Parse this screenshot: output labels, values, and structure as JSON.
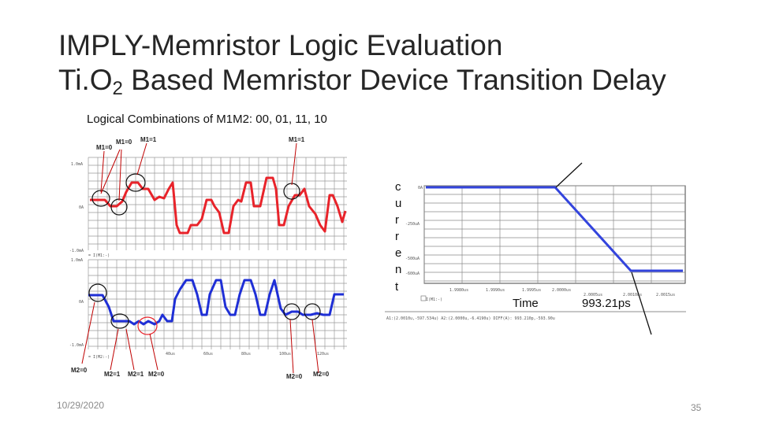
{
  "slide": {
    "title_line1": "IMPLY-Memristor Logic Evaluation",
    "title_line2_pre": "Ti.O",
    "title_line2_sub": "2",
    "title_line2_post": " Based Memristor Device Transition Delay",
    "subtitle": "Logical Combinations of M1M2: 00, 01, 11, 10",
    "date": "10/29/2020",
    "page_number": "35"
  },
  "left_figure": {
    "m1_labels": [
      "M1=0",
      "M1=0",
      "M1=1",
      "M1=1"
    ],
    "m2_labels": [
      "M2=0",
      "M2=1",
      "M2=1",
      "M2=0",
      "M2=0"
    ],
    "colors": {
      "m1_trace": "#e8232a",
      "m2_trace": "#1f2fd6",
      "annotation": "#c00000",
      "grid": "#9a9a9a"
    }
  },
  "right_figure": {
    "vertical_label": [
      "c",
      "u",
      "r",
      "r",
      "e",
      "n",
      "t"
    ],
    "time_label": "Time",
    "delay_label": "993.21ps",
    "colors": {
      "trace": "#3344dd",
      "grid": "#8a8a8a"
    }
  }
}
